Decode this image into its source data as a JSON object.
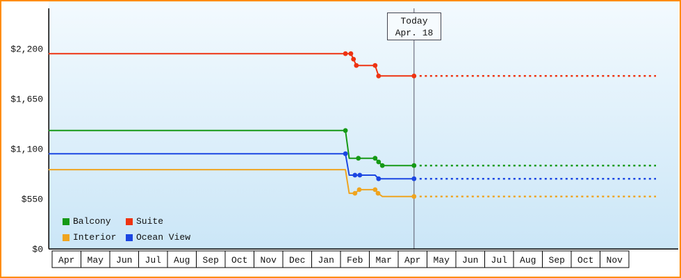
{
  "colors": {
    "frame_border": "#ff8c00",
    "plot_bg_top": "#f3fafe",
    "plot_bg_bottom": "#cbe6f7",
    "axis": "#000000",
    "today_line": "#555566"
  },
  "chart_data": {
    "type": "line",
    "y_axis": {
      "tick_values": [
        0,
        550,
        1100,
        1650,
        2200
      ],
      "tick_labels": [
        "$0",
        "$550",
        "$1,100",
        "$1,650",
        "$2,200"
      ],
      "range": [
        0,
        2630
      ],
      "grid": false
    },
    "x_axis": {
      "months": [
        "Apr",
        "May",
        "Jun",
        "Jul",
        "Aug",
        "Sep",
        "Oct",
        "Nov",
        "Dec",
        "Jan",
        "Feb",
        "Mar",
        "Apr",
        "May",
        "Jun",
        "Jul",
        "Aug",
        "Sep",
        "Oct",
        "Nov"
      ]
    },
    "today": {
      "line1": "Today",
      "line2": "Apr. 18",
      "month_index": 12.55
    },
    "legend_position": "bottom-left",
    "series": [
      {
        "name": "Balcony",
        "color": "#159915",
        "points": [
          [
            0,
            1300
          ],
          [
            10.17,
            1300
          ],
          [
            10.3,
            995
          ],
          [
            10.62,
            995
          ],
          [
            11.2,
            995
          ],
          [
            11.32,
            955
          ],
          [
            11.45,
            915
          ],
          [
            12.55,
            915
          ]
        ],
        "markers": [
          [
            10.17,
            1300
          ],
          [
            10.62,
            995
          ],
          [
            11.2,
            995
          ],
          [
            11.32,
            955
          ],
          [
            11.45,
            915
          ],
          [
            12.55,
            915
          ]
        ],
        "future_value": 915
      },
      {
        "name": "Suite",
        "color": "#ee3311",
        "points": [
          [
            0,
            2145
          ],
          [
            10.17,
            2145
          ],
          [
            10.36,
            2145
          ],
          [
            10.45,
            2085
          ],
          [
            10.55,
            2015
          ],
          [
            11.2,
            2015
          ],
          [
            11.32,
            1900
          ],
          [
            12.55,
            1900
          ]
        ],
        "markers": [
          [
            10.17,
            2145
          ],
          [
            10.36,
            2145
          ],
          [
            10.45,
            2085
          ],
          [
            10.55,
            2015
          ],
          [
            11.2,
            2015
          ],
          [
            11.32,
            1900
          ],
          [
            12.55,
            1900
          ]
        ],
        "future_value": 1900
      },
      {
        "name": "Interior",
        "color": "#efa41f",
        "points": [
          [
            0,
            870
          ],
          [
            10.17,
            870
          ],
          [
            10.3,
            610
          ],
          [
            10.5,
            610
          ],
          [
            10.65,
            650
          ],
          [
            11.2,
            650
          ],
          [
            11.3,
            610
          ],
          [
            11.45,
            575
          ],
          [
            12.55,
            575
          ]
        ],
        "markers": [
          [
            10.5,
            610
          ],
          [
            10.65,
            650
          ],
          [
            11.2,
            650
          ],
          [
            11.3,
            610
          ],
          [
            12.55,
            575
          ]
        ],
        "future_value": 575
      },
      {
        "name": "Ocean View",
        "color": "#1b46e2",
        "points": [
          [
            0,
            1045
          ],
          [
            10.17,
            1045
          ],
          [
            10.3,
            810
          ],
          [
            10.5,
            810
          ],
          [
            10.67,
            810
          ],
          [
            11.2,
            810
          ],
          [
            11.32,
            770
          ],
          [
            12.55,
            770
          ]
        ],
        "markers": [
          [
            10.17,
            1045
          ],
          [
            10.5,
            810
          ],
          [
            10.67,
            810
          ],
          [
            11.32,
            770
          ],
          [
            12.55,
            770
          ]
        ],
        "future_value": 770
      }
    ]
  }
}
